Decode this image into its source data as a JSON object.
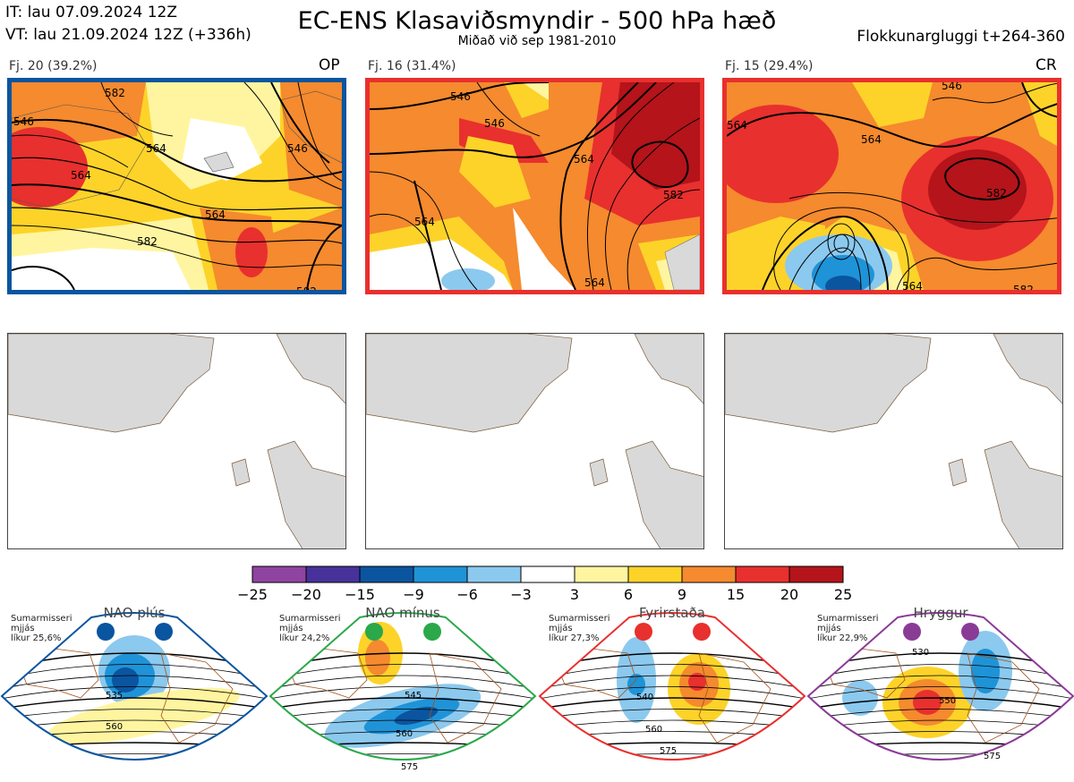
{
  "header": {
    "it": "IT: lau 07.09.2024 12Z",
    "vt": "VT: lau 21.09.2024 12Z  (+336h)",
    "title": "EC-ENS Klasaviðsmyndir - 500 hPa hæð",
    "subtitle": "Miðað við sep 1981-2010",
    "window": "Flokkunargluggi t+264-360"
  },
  "clusters": [
    {
      "label": "Fj. 20 (39.2%)",
      "tag": "OP",
      "border_color": "#0a55a0"
    },
    {
      "label": "Fj. 16 (31.4%)",
      "tag": "",
      "border_color": "#e8302e"
    },
    {
      "label": "Fj. 15 (29.4%)",
      "tag": "CR",
      "border_color": "#e8302e"
    }
  ],
  "contour_labels": {
    "c1": [
      "546",
      "564",
      "564",
      "582",
      "582",
      "546",
      "564",
      "582"
    ],
    "c2": [
      "546",
      "564",
      "582",
      "564",
      "546",
      "564"
    ],
    "c3": [
      "564",
      "582",
      "564",
      "582",
      "564",
      "546"
    ]
  },
  "colorbar": {
    "ticks": [
      "−25",
      "−20",
      "−15",
      "−9",
      "−6",
      "−3",
      "3",
      "6",
      "9",
      "15",
      "20",
      "25"
    ],
    "colors": [
      "#8e44a0",
      "#46329a",
      "#0b55a0",
      "#1f93d7",
      "#8cc9ee",
      "#ffffff",
      "#fff5a0",
      "#fdd329",
      "#f58a2e",
      "#e8302e",
      "#b4141a"
    ]
  },
  "regimes": [
    {
      "name": "NAO plús",
      "info": [
        "Sumarmisseri",
        "mjjás",
        "líkur 25,6%"
      ],
      "color": "#0a55a0",
      "labels": [
        "535",
        "560"
      ]
    },
    {
      "name": "NAO mínus",
      "info": [
        "Sumarmisseri",
        "mjjás",
        "líkur 24,2%"
      ],
      "color": "#2aa84a",
      "labels": [
        "545",
        "560",
        "575"
      ]
    },
    {
      "name": "Fyrirstaða",
      "info": [
        "Sumarmisseri",
        "mjjás",
        "líkur 27,3%"
      ],
      "color": "#e8302e",
      "labels": [
        "540",
        "560",
        "575"
      ]
    },
    {
      "name": "Hryggur",
      "info": [
        "Sumarmisseri",
        "mjjás",
        "líkur 22,9%"
      ],
      "color": "#8a3b96",
      "labels": [
        "530",
        "550",
        "575"
      ]
    }
  ]
}
